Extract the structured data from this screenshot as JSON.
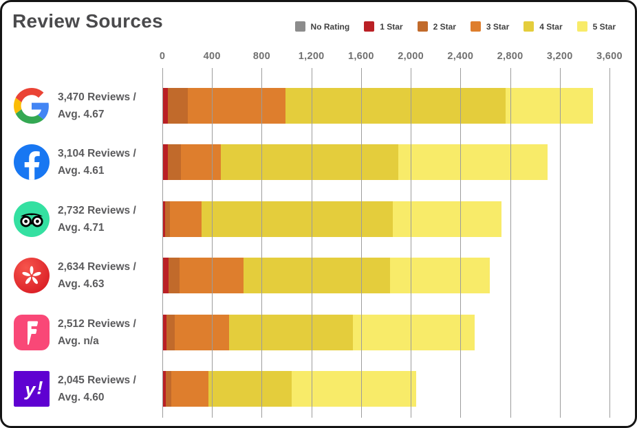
{
  "title": "Review Sources",
  "legend": {
    "items": [
      {
        "label": "No Rating",
        "color": "#8C8C8C"
      },
      {
        "label": "1 Star",
        "color": "#BA2025"
      },
      {
        "label": "2 Star",
        "color": "#C16A2B"
      },
      {
        "label": "3 Star",
        "color": "#DE7E2D"
      },
      {
        "label": "4 Star",
        "color": "#E4CD3C"
      },
      {
        "label": "5 Star",
        "color": "#F8EB69"
      }
    ]
  },
  "chart_data": {
    "type": "bar",
    "orientation": "horizontal",
    "stacked": true,
    "title": "Review Sources",
    "xlabel": "",
    "ylabel": "",
    "x_max": 3600,
    "x_ticks": [
      "0",
      "400",
      "800",
      "1,200",
      "1,600",
      "2,000",
      "2,400",
      "2,800",
      "3,200",
      "3,600"
    ],
    "grid": true,
    "legend_position": "top-right",
    "categories": [
      "Google",
      "Facebook",
      "Tripadvisor",
      "Yelp",
      "Foursquare",
      "Yahoo"
    ],
    "rows": [
      {
        "platform": "Google",
        "icon": "google-icon",
        "reviews_text": "3,470 Reviews /",
        "avg_text": "Avg. 4.67",
        "total": 3470
      },
      {
        "platform": "Facebook",
        "icon": "facebook-icon",
        "reviews_text": "3,104 Reviews /",
        "avg_text": "Avg. 4.61",
        "total": 3104
      },
      {
        "platform": "Tripadvisor",
        "icon": "tripadvisor-icon",
        "reviews_text": "2,732 Reviews /",
        "avg_text": "Avg. 4.71",
        "total": 2732
      },
      {
        "platform": "Yelp",
        "icon": "yelp-icon",
        "reviews_text": "2,634 Reviews /",
        "avg_text": "Avg. 4.63",
        "total": 2634
      },
      {
        "platform": "Foursquare",
        "icon": "foursquare-icon",
        "reviews_text": "2,512 Reviews /",
        "avg_text": "Avg. n/a",
        "total": 2512
      },
      {
        "platform": "Yahoo",
        "icon": "yahoo-icon",
        "reviews_text": "2,045 Reviews /",
        "avg_text": "Avg. 4.60",
        "total": 2045
      }
    ],
    "series": [
      {
        "name": "No Rating",
        "color": "#8C8C8C",
        "values": [
          0,
          0,
          0,
          0,
          0,
          0
        ]
      },
      {
        "name": "1 Star",
        "color": "#BA2025",
        "values": [
          44,
          46,
          22,
          50,
          32,
          25
        ]
      },
      {
        "name": "2 Star",
        "color": "#C16A2B",
        "values": [
          160,
          105,
          40,
          87,
          67,
          45
        ]
      },
      {
        "name": "3 Star",
        "color": "#DE7E2D",
        "values": [
          790,
          318,
          253,
          515,
          437,
          303
        ]
      },
      {
        "name": "4 Star",
        "color": "#E4CD3C",
        "values": [
          1770,
          1430,
          1540,
          1180,
          998,
          666
        ]
      },
      {
        "name": "5 Star",
        "color": "#F8EB69",
        "values": [
          706,
          1205,
          877,
          802,
          978,
          1006
        ]
      }
    ]
  }
}
